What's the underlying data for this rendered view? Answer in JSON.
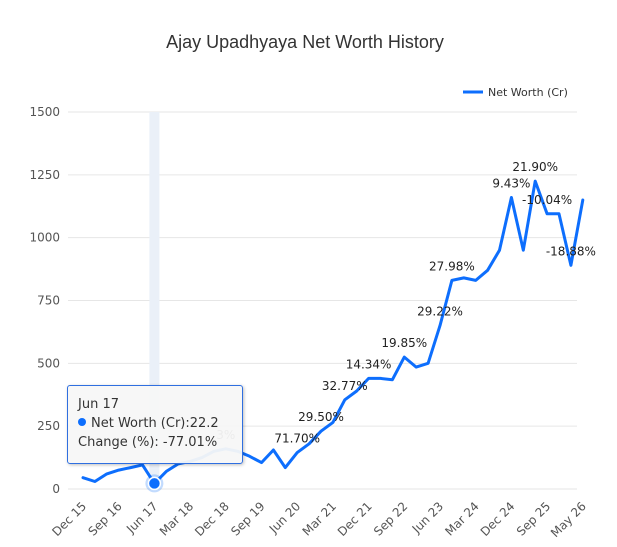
{
  "colors": {
    "line": "#0d6efd",
    "grid": "#e6e6e6",
    "crosshair": "#eaf0f8"
  },
  "chart_data": {
    "type": "line",
    "title": "Ajay Upadhyaya Net Worth History",
    "xlabel": "",
    "ylabel": "",
    "ylim": [
      0,
      1500
    ],
    "yticks": [
      "0",
      "250",
      "500",
      "750",
      "1000",
      "1250",
      "1500"
    ],
    "xtick_labels": [
      "Dec 15",
      "Sep 16",
      "Jun 17",
      "Mar 18",
      "Dec 18",
      "Sep 19",
      "Jun 20",
      "Mar 21",
      "Dec 21",
      "Sep 22",
      "Jun 23",
      "Mar 24",
      "Dec 24",
      "Sep 25",
      "May 26"
    ],
    "legend": {
      "position": "top-right",
      "entries": [
        "Net Worth (Cr)"
      ]
    },
    "grid": true,
    "series": [
      {
        "name": "Net Worth (Cr)",
        "x": [
          "Dec 15",
          "Mar 16",
          "Jun 16",
          "Sep 16",
          "Dec 16",
          "Mar 17",
          "Jun 17",
          "Sep 17",
          "Dec 17",
          "Mar 18",
          "Jun 18",
          "Sep 18",
          "Dec 18",
          "Mar 19",
          "Jun 19",
          "Sep 19",
          "Dec 19",
          "Mar 20",
          "Jun 20",
          "Sep 20",
          "Dec 20",
          "Mar 21",
          "Jun 21",
          "Sep 21",
          "Dec 21",
          "Mar 22",
          "Jun 22",
          "Sep 22",
          "Dec 22",
          "Mar 23",
          "Jun 23",
          "Sep 23",
          "Dec 23",
          "Mar 24",
          "Jun 24",
          "Sep 24",
          "Dec 24",
          "Mar 25",
          "Jun 25",
          "Sep 25",
          "Dec 25",
          "Mar 26",
          "May 26"
        ],
        "values": [
          45,
          30,
          60,
          75,
          85,
          96,
          22.2,
          70,
          100,
          110,
          125,
          150,
          160,
          150,
          130,
          105,
          155,
          85,
          145,
          180,
          230,
          265,
          355,
          390,
          440,
          440,
          435,
          525,
          485,
          500,
          650,
          830,
          840,
          830,
          870,
          950,
          1160,
          950,
          1225,
          1095,
          1095,
          890,
          1150
        ]
      }
    ],
    "data_labels": [
      {
        "x": "Dec 18",
        "text": "3%"
      },
      {
        "x": "Jun 20",
        "text": "71.70%"
      },
      {
        "x": "Dec 20",
        "text": "29.50%"
      },
      {
        "x": "Jun 21",
        "text": "32.77%"
      },
      {
        "x": "Dec 21",
        "text": "14.34%"
      },
      {
        "x": "Sep 22",
        "text": "19.85%"
      },
      {
        "x": "Jun 23",
        "text": "29.22%"
      },
      {
        "x": "Sep 23",
        "text": "27.98%"
      },
      {
        "x": "Dec 24",
        "text": "9.43%"
      },
      {
        "x": "Jun 25",
        "text": "21.90%"
      },
      {
        "x": "Sep 25",
        "text": "-10.04%"
      },
      {
        "x": "Mar 26",
        "text": "-18.88%"
      }
    ]
  },
  "tooltip": {
    "date": "Jun 17",
    "series_label": "Net Worth (Cr):22.2",
    "change_label": "Change (%): -77.01%"
  }
}
